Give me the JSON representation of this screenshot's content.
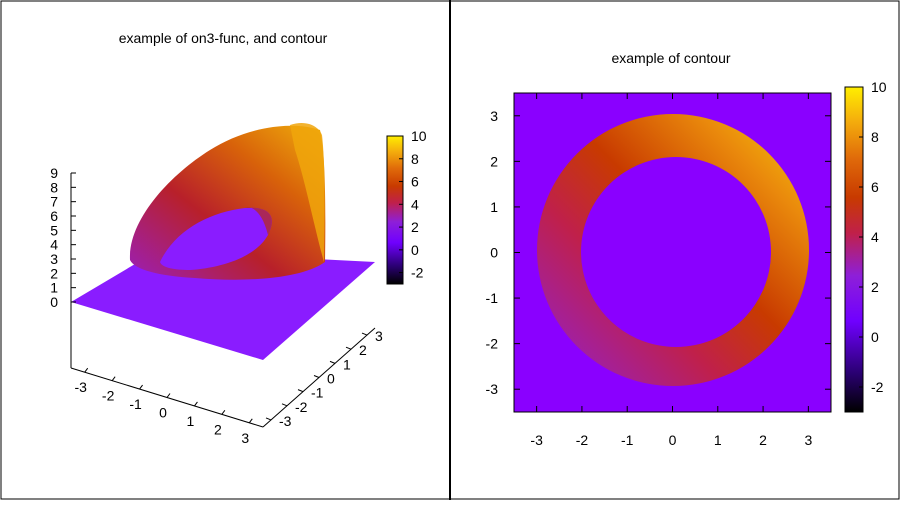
{
  "chart_data": [
    {
      "type": "surface3d",
      "title": "example of on3-func, and contour",
      "xlabel": "",
      "ylabel": "",
      "zlabel": "",
      "x_ticks": [
        "-3",
        "-2",
        "-1",
        "0",
        "1",
        "2",
        "3"
      ],
      "y_ticks": [
        "-3",
        "-2",
        "-1",
        "0",
        "1",
        "2",
        "3"
      ],
      "z_ticks": [
        "0",
        "1",
        "2",
        "3",
        "4",
        "5",
        "6",
        "7",
        "8",
        "9"
      ],
      "xlim": [
        -3.5,
        3.5
      ],
      "ylim": [
        -3.5,
        3.5
      ],
      "zlim": [
        0,
        9
      ],
      "colorbar": {
        "ticks": [
          "10",
          "8",
          "6",
          "4",
          "2",
          "0",
          "-2"
        ],
        "range": [
          -3,
          10
        ]
      },
      "surface": {
        "shape": "ring",
        "outer_radius": 3.0,
        "inner_radius": 2.0,
        "z_min": 0,
        "z_max": 10,
        "z_direction": "increasing toward +x,+y"
      }
    },
    {
      "type": "heatmap",
      "title": "example of contour",
      "xlabel": "",
      "ylabel": "",
      "x_ticks": [
        "-3",
        "-2",
        "-1",
        "0",
        "1",
        "2",
        "3"
      ],
      "y_ticks": [
        "3",
        "2",
        "1",
        "0",
        "-1",
        "-2",
        "-3"
      ],
      "xlim": [
        -3.5,
        3.5
      ],
      "ylim": [
        -3.5,
        3.5
      ],
      "background_value": 0,
      "colorbar": {
        "ticks": [
          "10",
          "8",
          "6",
          "4",
          "2",
          "0",
          "-2"
        ],
        "range": [
          -3,
          10
        ]
      },
      "ring": {
        "outer_radius": 3.0,
        "inner_radius": 2.0,
        "value_min": 1,
        "value_max": 10,
        "value_direction": "increasing toward +x,+y"
      }
    }
  ],
  "colors": {
    "palette": [
      "#000000",
      "#2a0072",
      "#7000ff",
      "#8e1fd8",
      "#c0204a",
      "#c83a00",
      "#d9520a",
      "#ea8a0c",
      "#f5c20a",
      "#ffff00"
    ]
  }
}
